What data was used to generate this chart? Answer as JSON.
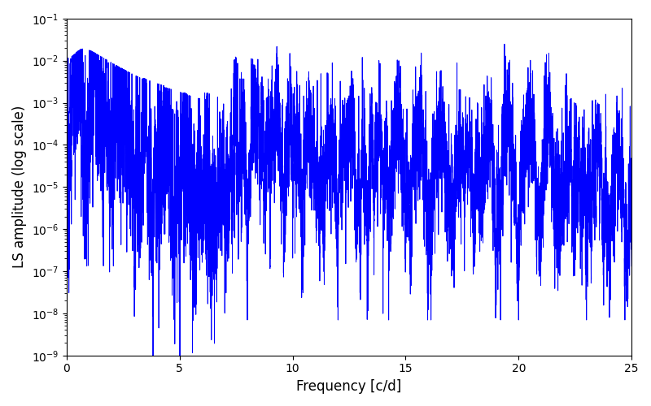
{
  "title": "",
  "xlabel": "Frequency [c/d]",
  "ylabel": "LS amplitude (log scale)",
  "line_color": "#0000ff",
  "line_width": 0.7,
  "xlim": [
    0,
    25
  ],
  "ylim": [
    1e-09,
    0.1
  ],
  "yscale": "log",
  "figsize": [
    8.0,
    5.0
  ],
  "dpi": 100,
  "n_points": 8000,
  "freq_max": 25.0,
  "background_color": "#ffffff",
  "seed": 12345
}
